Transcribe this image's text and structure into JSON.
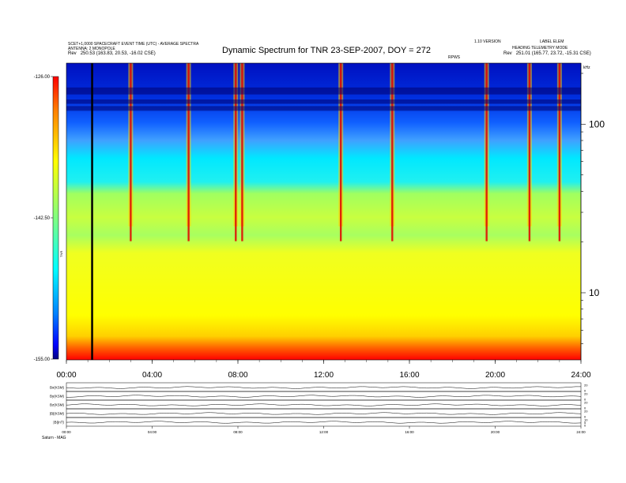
{
  "header": {
    "left_line1": "SCET+1,0000 SPACECRAFT EVENT TIME (UTC) - AVERAGE SPECTRA",
    "left_line2": "ANTENNA: 2 MONOPOLE",
    "left_line3_label": "Rev",
    "left_line3_value": "250.53 (163.83, 20.53, -16.02 CSE)",
    "right_line1": "1.10 VERSION",
    "right_line1b": "LABEL ELEM",
    "right_line2": "HEADING TELEMETRY MODE",
    "right_line3_label": "Rev",
    "right_line3_value": "251.01 (165.77, 23.72, -15.31 CSE)",
    "title": "Dynamic Spectrum for TNR 23-SEP-2007, DOY = 272",
    "center_tag": "RPWS"
  },
  "chart_data": [
    {
      "type": "heatmap",
      "title": "Dynamic Spectrum for TNR 23-SEP-2007, DOY = 272",
      "x_ticks": [
        "00:00",
        "04:00",
        "08:00",
        "12:00",
        "16:00",
        "20:00",
        "24:00"
      ],
      "x_range_hours": [
        0,
        24
      ],
      "y_scale": "log",
      "y_unit": "kHz",
      "y_ticks": [
        10,
        100
      ],
      "y_range_khz": [
        4,
        230
      ],
      "colorbar": {
        "labels": [
          "-126.00",
          "-142.50",
          "-155.00"
        ],
        "range": [
          -155.0,
          -126.0
        ],
        "axis_label": "TNR",
        "colors": [
          "#ff0000",
          "#ff8000",
          "#ffff00",
          "#80ff80",
          "#00ffff",
          "#0080ff",
          "#0000ff",
          "#000080"
        ]
      },
      "background_bands": [
        {
          "from_khz": 4,
          "to_khz": 5,
          "level": "red"
        },
        {
          "from_khz": 5,
          "to_khz": 18,
          "level": "yellow"
        },
        {
          "from_khz": 18,
          "to_khz": 35,
          "level": "green"
        },
        {
          "from_khz": 35,
          "to_khz": 80,
          "level": "cyan"
        },
        {
          "from_khz": 80,
          "to_khz": 230,
          "level": "blue"
        }
      ],
      "bursts_hours": [
        3.0,
        5.7,
        7.9,
        8.2,
        12.8,
        15.2,
        19.6,
        21.6,
        23.0
      ],
      "marker_hour": 1.2
    },
    {
      "type": "line",
      "title": "",
      "panels": [
        {
          "label": "Bx(KSM)",
          "right_ticks": [
            "20",
            "0"
          ]
        },
        {
          "label": "By(KSM)",
          "right_ticks": [
            "20",
            "0"
          ]
        },
        {
          "label": "Bz(KSM)",
          "right_ticks": [
            "20",
            "0"
          ]
        },
        {
          "label": "|B|(KSM)",
          "right_ticks": [
            "20",
            "0"
          ]
        },
        {
          "label": "|B|(nT)",
          "right_ticks": [
            "10",
            "5",
            "0"
          ]
        }
      ],
      "x_ticks": [
        "00:00",
        "04:00",
        "08:00",
        "12:00",
        "16:00",
        "20:00",
        "24:00"
      ],
      "x_range_hours": [
        0,
        24
      ]
    }
  ],
  "footer": {
    "label": "Saturn - MAG"
  }
}
